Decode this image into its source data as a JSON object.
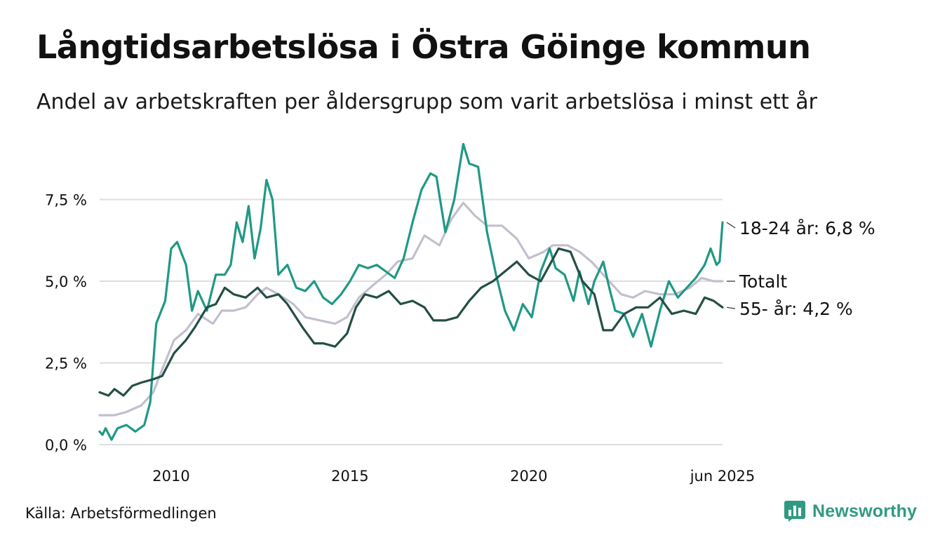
{
  "header": {
    "title": "Långtidsarbetslösa i Östra Göinge kommun",
    "subtitle": "Andel av arbetskraften per åldersgrupp som varit arbetslösa i minst ett år"
  },
  "footer": {
    "source": "Källa: Arbetsförmedlingen",
    "brand": "Newsworthy"
  },
  "colors": {
    "youth": "#1f9985",
    "total": "#c3bfcd",
    "older": "#244f45",
    "grid": "#dedede",
    "brand": "#2f9a84"
  },
  "chart_data": {
    "type": "line",
    "x_range": [
      "2008-01",
      "2025-06"
    ],
    "ylim": [
      0,
      9.4
    ],
    "yticks": [
      0,
      2.5,
      5,
      7.5
    ],
    "ytick_labels": [
      "0,0 %",
      "2,5 %",
      "5,0 %",
      "7,5 %"
    ],
    "xticks": [
      {
        "date": "2010-01",
        "label": "2010"
      },
      {
        "date": "2015-01",
        "label": "2015"
      },
      {
        "date": "2020-01",
        "label": "2020"
      },
      {
        "date": "2025-06",
        "label": "jun 2025"
      }
    ],
    "grid": true,
    "series": [
      {
        "key": "total",
        "name": "Totalt",
        "end_label": "Totalt",
        "color": "#c3bfcd",
        "points": [
          [
            "2008-01",
            0.9
          ],
          [
            "2008-06",
            0.9
          ],
          [
            "2008-10",
            1.0
          ],
          [
            "2009-03",
            1.2
          ],
          [
            "2009-07",
            1.6
          ],
          [
            "2009-10",
            2.3
          ],
          [
            "2010-02",
            3.2
          ],
          [
            "2010-06",
            3.5
          ],
          [
            "2010-10",
            4.0
          ],
          [
            "2011-03",
            3.7
          ],
          [
            "2011-06",
            4.1
          ],
          [
            "2011-10",
            4.1
          ],
          [
            "2012-02",
            4.2
          ],
          [
            "2012-06",
            4.6
          ],
          [
            "2012-09",
            4.8
          ],
          [
            "2013-01",
            4.6
          ],
          [
            "2013-06",
            4.3
          ],
          [
            "2013-10",
            3.9
          ],
          [
            "2014-03",
            3.8
          ],
          [
            "2014-08",
            3.7
          ],
          [
            "2014-12",
            3.9
          ],
          [
            "2015-04",
            4.5
          ],
          [
            "2015-09",
            4.9
          ],
          [
            "2016-01",
            5.2
          ],
          [
            "2016-05",
            5.6
          ],
          [
            "2016-10",
            5.7
          ],
          [
            "2017-02",
            6.4
          ],
          [
            "2017-07",
            6.1
          ],
          [
            "2017-11",
            6.9
          ],
          [
            "2018-03",
            7.4
          ],
          [
            "2018-07",
            7.0
          ],
          [
            "2018-11",
            6.7
          ],
          [
            "2019-04",
            6.7
          ],
          [
            "2019-09",
            6.3
          ],
          [
            "2020-01",
            5.7
          ],
          [
            "2020-06",
            5.9
          ],
          [
            "2020-09",
            6.1
          ],
          [
            "2021-02",
            6.1
          ],
          [
            "2021-06",
            5.9
          ],
          [
            "2021-10",
            5.6
          ],
          [
            "2022-03",
            5.1
          ],
          [
            "2022-08",
            4.6
          ],
          [
            "2022-12",
            4.5
          ],
          [
            "2023-04",
            4.7
          ],
          [
            "2023-09",
            4.6
          ],
          [
            "2024-02",
            4.6
          ],
          [
            "2024-07",
            4.8
          ],
          [
            "2024-11",
            5.1
          ],
          [
            "2025-03",
            5.0
          ],
          [
            "2025-06",
            5.0
          ]
        ]
      },
      {
        "key": "youth",
        "name": "18-24 år",
        "end_label": "18-24 år: 6,8 %",
        "color": "#1f9985",
        "points": [
          [
            "2008-01",
            0.4
          ],
          [
            "2008-02",
            0.3
          ],
          [
            "2008-03",
            0.5
          ],
          [
            "2008-05",
            0.15
          ],
          [
            "2008-07",
            0.5
          ],
          [
            "2008-10",
            0.6
          ],
          [
            "2009-01",
            0.4
          ],
          [
            "2009-04",
            0.6
          ],
          [
            "2009-06",
            1.3
          ],
          [
            "2009-08",
            3.7
          ],
          [
            "2009-11",
            4.4
          ],
          [
            "2010-01",
            6.0
          ],
          [
            "2010-03",
            6.2
          ],
          [
            "2010-06",
            5.5
          ],
          [
            "2010-08",
            4.1
          ],
          [
            "2010-10",
            4.7
          ],
          [
            "2011-01",
            4.1
          ],
          [
            "2011-04",
            5.2
          ],
          [
            "2011-07",
            5.2
          ],
          [
            "2011-09",
            5.5
          ],
          [
            "2011-11",
            6.8
          ],
          [
            "2012-01",
            6.2
          ],
          [
            "2012-03",
            7.3
          ],
          [
            "2012-05",
            5.7
          ],
          [
            "2012-07",
            6.6
          ],
          [
            "2012-09",
            8.1
          ],
          [
            "2012-11",
            7.5
          ],
          [
            "2013-01",
            5.2
          ],
          [
            "2013-04",
            5.5
          ],
          [
            "2013-07",
            4.8
          ],
          [
            "2013-10",
            4.7
          ],
          [
            "2014-01",
            5.0
          ],
          [
            "2014-04",
            4.5
          ],
          [
            "2014-07",
            4.3
          ],
          [
            "2014-10",
            4.6
          ],
          [
            "2015-01",
            5.0
          ],
          [
            "2015-04",
            5.5
          ],
          [
            "2015-07",
            5.4
          ],
          [
            "2015-10",
            5.5
          ],
          [
            "2016-01",
            5.3
          ],
          [
            "2016-04",
            5.1
          ],
          [
            "2016-07",
            5.7
          ],
          [
            "2016-10",
            6.8
          ],
          [
            "2017-01",
            7.8
          ],
          [
            "2017-04",
            8.3
          ],
          [
            "2017-06",
            8.2
          ],
          [
            "2017-09",
            6.5
          ],
          [
            "2017-12",
            7.5
          ],
          [
            "2018-03",
            9.2
          ],
          [
            "2018-05",
            8.6
          ],
          [
            "2018-08",
            8.5
          ],
          [
            "2018-11",
            6.5
          ],
          [
            "2019-02",
            5.2
          ],
          [
            "2019-05",
            4.1
          ],
          [
            "2019-08",
            3.5
          ],
          [
            "2019-11",
            4.3
          ],
          [
            "2020-02",
            3.9
          ],
          [
            "2020-05",
            5.3
          ],
          [
            "2020-08",
            6.0
          ],
          [
            "2020-10",
            5.4
          ],
          [
            "2021-01",
            5.2
          ],
          [
            "2021-04",
            4.4
          ],
          [
            "2021-06",
            5.3
          ],
          [
            "2021-09",
            4.3
          ],
          [
            "2021-11",
            5.0
          ],
          [
            "2022-02",
            5.6
          ],
          [
            "2022-04",
            4.8
          ],
          [
            "2022-06",
            4.1
          ],
          [
            "2022-09",
            4.0
          ],
          [
            "2022-12",
            3.3
          ],
          [
            "2023-03",
            4.0
          ],
          [
            "2023-06",
            3.0
          ],
          [
            "2023-09",
            4.1
          ],
          [
            "2023-12",
            5.0
          ],
          [
            "2024-03",
            4.5
          ],
          [
            "2024-06",
            4.8
          ],
          [
            "2024-09",
            5.1
          ],
          [
            "2024-12",
            5.5
          ],
          [
            "2025-02",
            6.0
          ],
          [
            "2025-04",
            5.5
          ],
          [
            "2025-05",
            5.6
          ],
          [
            "2025-06",
            6.8
          ]
        ]
      },
      {
        "key": "older",
        "name": "55- år",
        "end_label": "55- år: 4,2 %",
        "color": "#244f45",
        "points": [
          [
            "2008-01",
            1.6
          ],
          [
            "2008-04",
            1.5
          ],
          [
            "2008-06",
            1.7
          ],
          [
            "2008-09",
            1.5
          ],
          [
            "2008-12",
            1.8
          ],
          [
            "2009-03",
            1.9
          ],
          [
            "2009-07",
            2.0
          ],
          [
            "2009-10",
            2.1
          ],
          [
            "2010-02",
            2.8
          ],
          [
            "2010-06",
            3.2
          ],
          [
            "2010-09",
            3.6
          ],
          [
            "2011-01",
            4.2
          ],
          [
            "2011-04",
            4.3
          ],
          [
            "2011-07",
            4.8
          ],
          [
            "2011-10",
            4.6
          ],
          [
            "2012-02",
            4.5
          ],
          [
            "2012-06",
            4.8
          ],
          [
            "2012-09",
            4.5
          ],
          [
            "2013-01",
            4.6
          ],
          [
            "2013-04",
            4.3
          ],
          [
            "2013-09",
            3.6
          ],
          [
            "2014-01",
            3.1
          ],
          [
            "2014-04",
            3.1
          ],
          [
            "2014-08",
            3.0
          ],
          [
            "2014-12",
            3.4
          ],
          [
            "2015-03",
            4.2
          ],
          [
            "2015-06",
            4.6
          ],
          [
            "2015-10",
            4.5
          ],
          [
            "2016-02",
            4.7
          ],
          [
            "2016-06",
            4.3
          ],
          [
            "2016-10",
            4.4
          ],
          [
            "2017-02",
            4.2
          ],
          [
            "2017-05",
            3.8
          ],
          [
            "2017-09",
            3.8
          ],
          [
            "2018-01",
            3.9
          ],
          [
            "2018-05",
            4.4
          ],
          [
            "2018-09",
            4.8
          ],
          [
            "2019-01",
            5.0
          ],
          [
            "2019-05",
            5.3
          ],
          [
            "2019-09",
            5.6
          ],
          [
            "2020-01",
            5.2
          ],
          [
            "2020-05",
            5.0
          ],
          [
            "2020-08",
            5.5
          ],
          [
            "2020-11",
            6.0
          ],
          [
            "2021-03",
            5.9
          ],
          [
            "2021-07",
            5.0
          ],
          [
            "2021-11",
            4.6
          ],
          [
            "2022-02",
            3.5
          ],
          [
            "2022-05",
            3.5
          ],
          [
            "2022-09",
            4.0
          ],
          [
            "2023-01",
            4.2
          ],
          [
            "2023-05",
            4.2
          ],
          [
            "2023-09",
            4.5
          ],
          [
            "2024-01",
            4.0
          ],
          [
            "2024-05",
            4.1
          ],
          [
            "2024-09",
            4.0
          ],
          [
            "2024-12",
            4.5
          ],
          [
            "2025-03",
            4.4
          ],
          [
            "2025-06",
            4.2
          ]
        ]
      }
    ]
  }
}
